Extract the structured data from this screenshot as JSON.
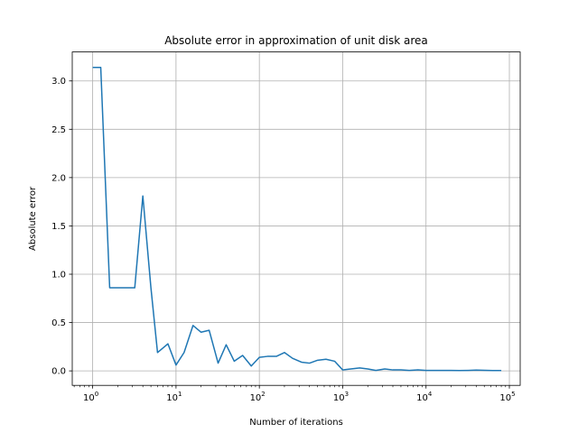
{
  "chart_data": {
    "type": "line",
    "title": "Absolute error in approximation of unit disk area",
    "xlabel": "Number of iterations",
    "ylabel": "Absolute error",
    "xscale": "log",
    "xlim": [
      1,
      100000
    ],
    "ylim": [
      -0.15,
      3.3
    ],
    "grid": true,
    "x_ticks": [
      {
        "value": 1,
        "label": "10",
        "exp": "0"
      },
      {
        "value": 10,
        "label": "10",
        "exp": "1"
      },
      {
        "value": 100,
        "label": "10",
        "exp": "2"
      },
      {
        "value": 1000,
        "label": "10",
        "exp": "3"
      },
      {
        "value": 10000,
        "label": "10",
        "exp": "4"
      },
      {
        "value": 100000,
        "label": "10",
        "exp": "5"
      }
    ],
    "y_ticks": [
      {
        "value": 0.0,
        "label": "0.0"
      },
      {
        "value": 0.5,
        "label": "0.5"
      },
      {
        "value": 1.0,
        "label": "1.0"
      },
      {
        "value": 1.5,
        "label": "1.5"
      },
      {
        "value": 2.0,
        "label": "2.0"
      },
      {
        "value": 2.5,
        "label": "2.5"
      },
      {
        "value": 3.0,
        "label": "3.0"
      }
    ],
    "series": [
      {
        "color": "#1f77b4",
        "x": [
          1,
          1.25,
          1.6,
          2,
          2.5,
          3.2,
          4,
          5,
          6,
          8,
          10,
          12.5,
          16,
          20,
          25,
          32,
          40,
          50,
          63,
          80,
          100,
          125,
          160,
          200,
          250,
          320,
          400,
          500,
          630,
          800,
          1000,
          1250,
          1600,
          2000,
          2500,
          3200,
          4000,
          5000,
          6300,
          8000,
          10000,
          12500,
          16000,
          20000,
          25000,
          32000,
          40000,
          50000,
          63000,
          80000
        ],
        "y": [
          3.14,
          3.14,
          0.86,
          0.86,
          0.86,
          0.86,
          1.81,
          0.86,
          0.19,
          0.28,
          0.06,
          0.19,
          0.47,
          0.4,
          0.42,
          0.08,
          0.27,
          0.1,
          0.16,
          0.05,
          0.14,
          0.15,
          0.15,
          0.19,
          0.13,
          0.09,
          0.08,
          0.11,
          0.12,
          0.1,
          0.01,
          0.02,
          0.03,
          0.02,
          0.005,
          0.02,
          0.01,
          0.01,
          0.005,
          0.01,
          0.005,
          0.005,
          0.005,
          0.005,
          0.003,
          0.005,
          0.008,
          0.006,
          0.004,
          0.003
        ]
      }
    ]
  }
}
